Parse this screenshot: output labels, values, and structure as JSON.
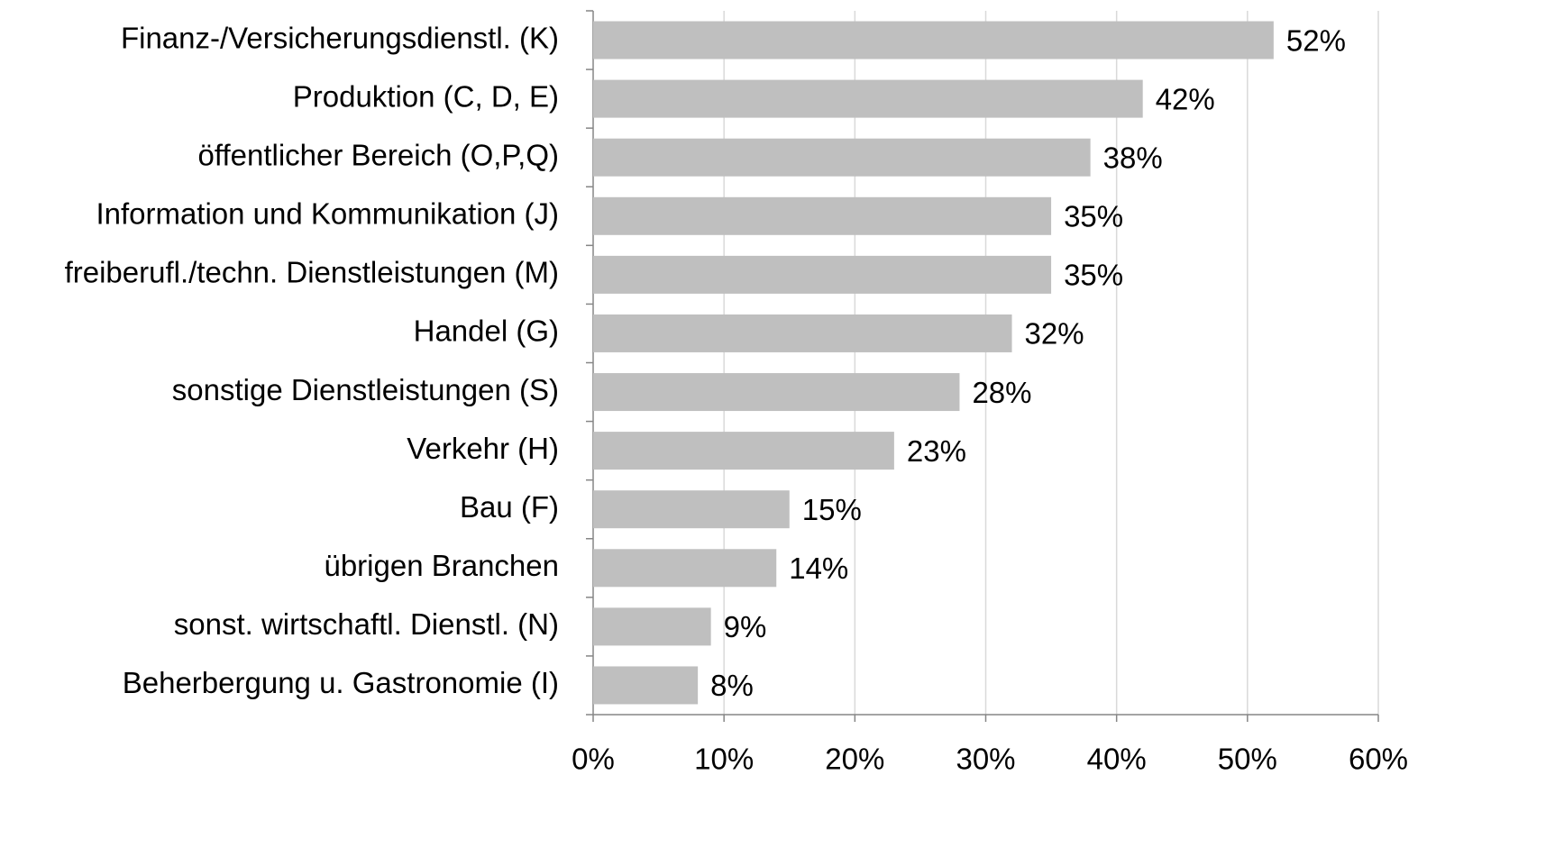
{
  "chart_data": {
    "type": "barh",
    "categories": [
      "Finanz-/Versicherungsdienstl. (K)",
      "Produktion (C, D, E)",
      "öffentlicher Bereich (O,P,Q)",
      "Information und Kommunikation (J)",
      "freiberufl./techn. Dienstleistungen (M)",
      "Handel (G)",
      "sonstige Dienstleistungen (S)",
      "Verkehr (H)",
      "Bau (F)",
      "übrigen Branchen",
      "sonst. wirtschaftl. Dienstl. (N)",
      "Beherbergung u. Gastronomie (I)"
    ],
    "values": [
      52,
      42,
      38,
      35,
      35,
      32,
      28,
      23,
      15,
      14,
      9,
      8
    ],
    "value_labels": [
      "52%",
      "42%",
      "38%",
      "35%",
      "35%",
      "32%",
      "28%",
      "23%",
      "15%",
      "14%",
      "9%",
      "8%"
    ],
    "color": "#bfbfbf",
    "xlim": [
      0,
      60
    ],
    "xticks": [
      {
        "value": 0,
        "label": "0%"
      },
      {
        "value": 10,
        "label": "10%"
      },
      {
        "value": 20,
        "label": "20%"
      },
      {
        "value": 30,
        "label": "30%"
      },
      {
        "value": 40,
        "label": "40%"
      },
      {
        "value": 50,
        "label": "50%"
      },
      {
        "value": 60,
        "label": "60%"
      }
    ],
    "grid": true
  }
}
